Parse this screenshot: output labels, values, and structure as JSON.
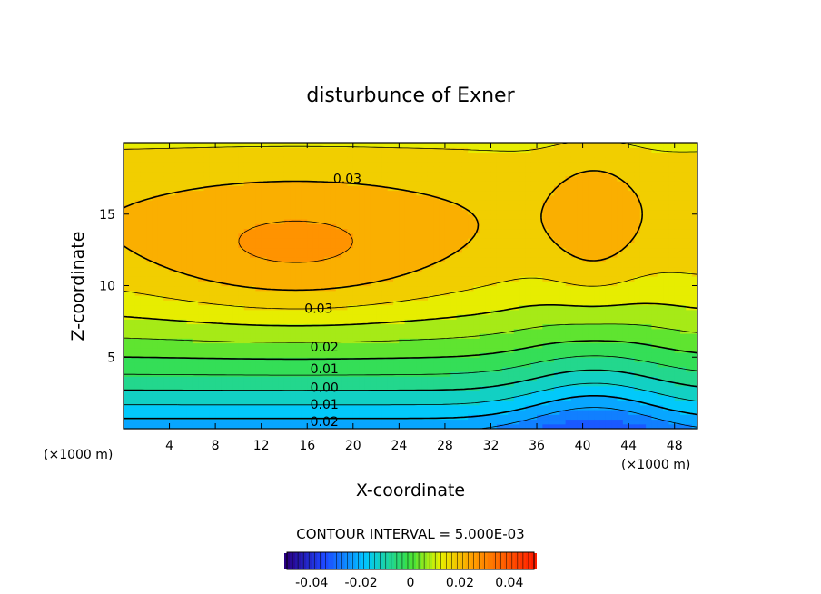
{
  "chart_data": {
    "type": "heatmap",
    "title": "disturbunce of Exner",
    "xlabel": "X-coordinate",
    "ylabel": "Z-coordinate",
    "x_unit": "(×1000 m)",
    "z_unit": "(×1000 m)",
    "xlim": [
      0,
      50
    ],
    "ylim": [
      0,
      20
    ],
    "x_ticks": [
      "4",
      "8",
      "12",
      "16",
      "20",
      "24",
      "28",
      "32",
      "36",
      "40",
      "44",
      "48"
    ],
    "y_ticks": [
      "5",
      "10",
      "15"
    ],
    "x_tick_values": [
      4,
      8,
      12,
      16,
      20,
      24,
      28,
      32,
      36,
      40,
      44,
      48
    ],
    "y_tick_values": [
      5,
      10,
      15
    ],
    "contour_interval_text": "CONTOUR INTERVAL = 5.000E-03",
    "contour_labels": [
      {
        "text": "0.03",
        "x": 19.5,
        "z": 17.5
      },
      {
        "text": "0.03",
        "x": 17.0,
        "z": 8.4
      },
      {
        "text": "0.02",
        "x": 17.5,
        "z": 5.7
      },
      {
        "text": "0.01",
        "x": 17.5,
        "z": 4.2
      },
      {
        "text": "0.00",
        "x": 17.5,
        "z": 2.9
      },
      {
        "text": "0.01",
        "x": 17.5,
        "z": 1.7
      },
      {
        "text": "0.02",
        "x": 17.5,
        "z": 0.5
      }
    ],
    "colorbar": {
      "range": [
        -0.05,
        0.05
      ],
      "ticks": [
        "-0.04",
        "-0.02",
        "0",
        "0.02",
        "0.04"
      ],
      "tick_values": [
        -0.04,
        -0.02,
        0,
        0.02,
        0.04
      ]
    }
  }
}
